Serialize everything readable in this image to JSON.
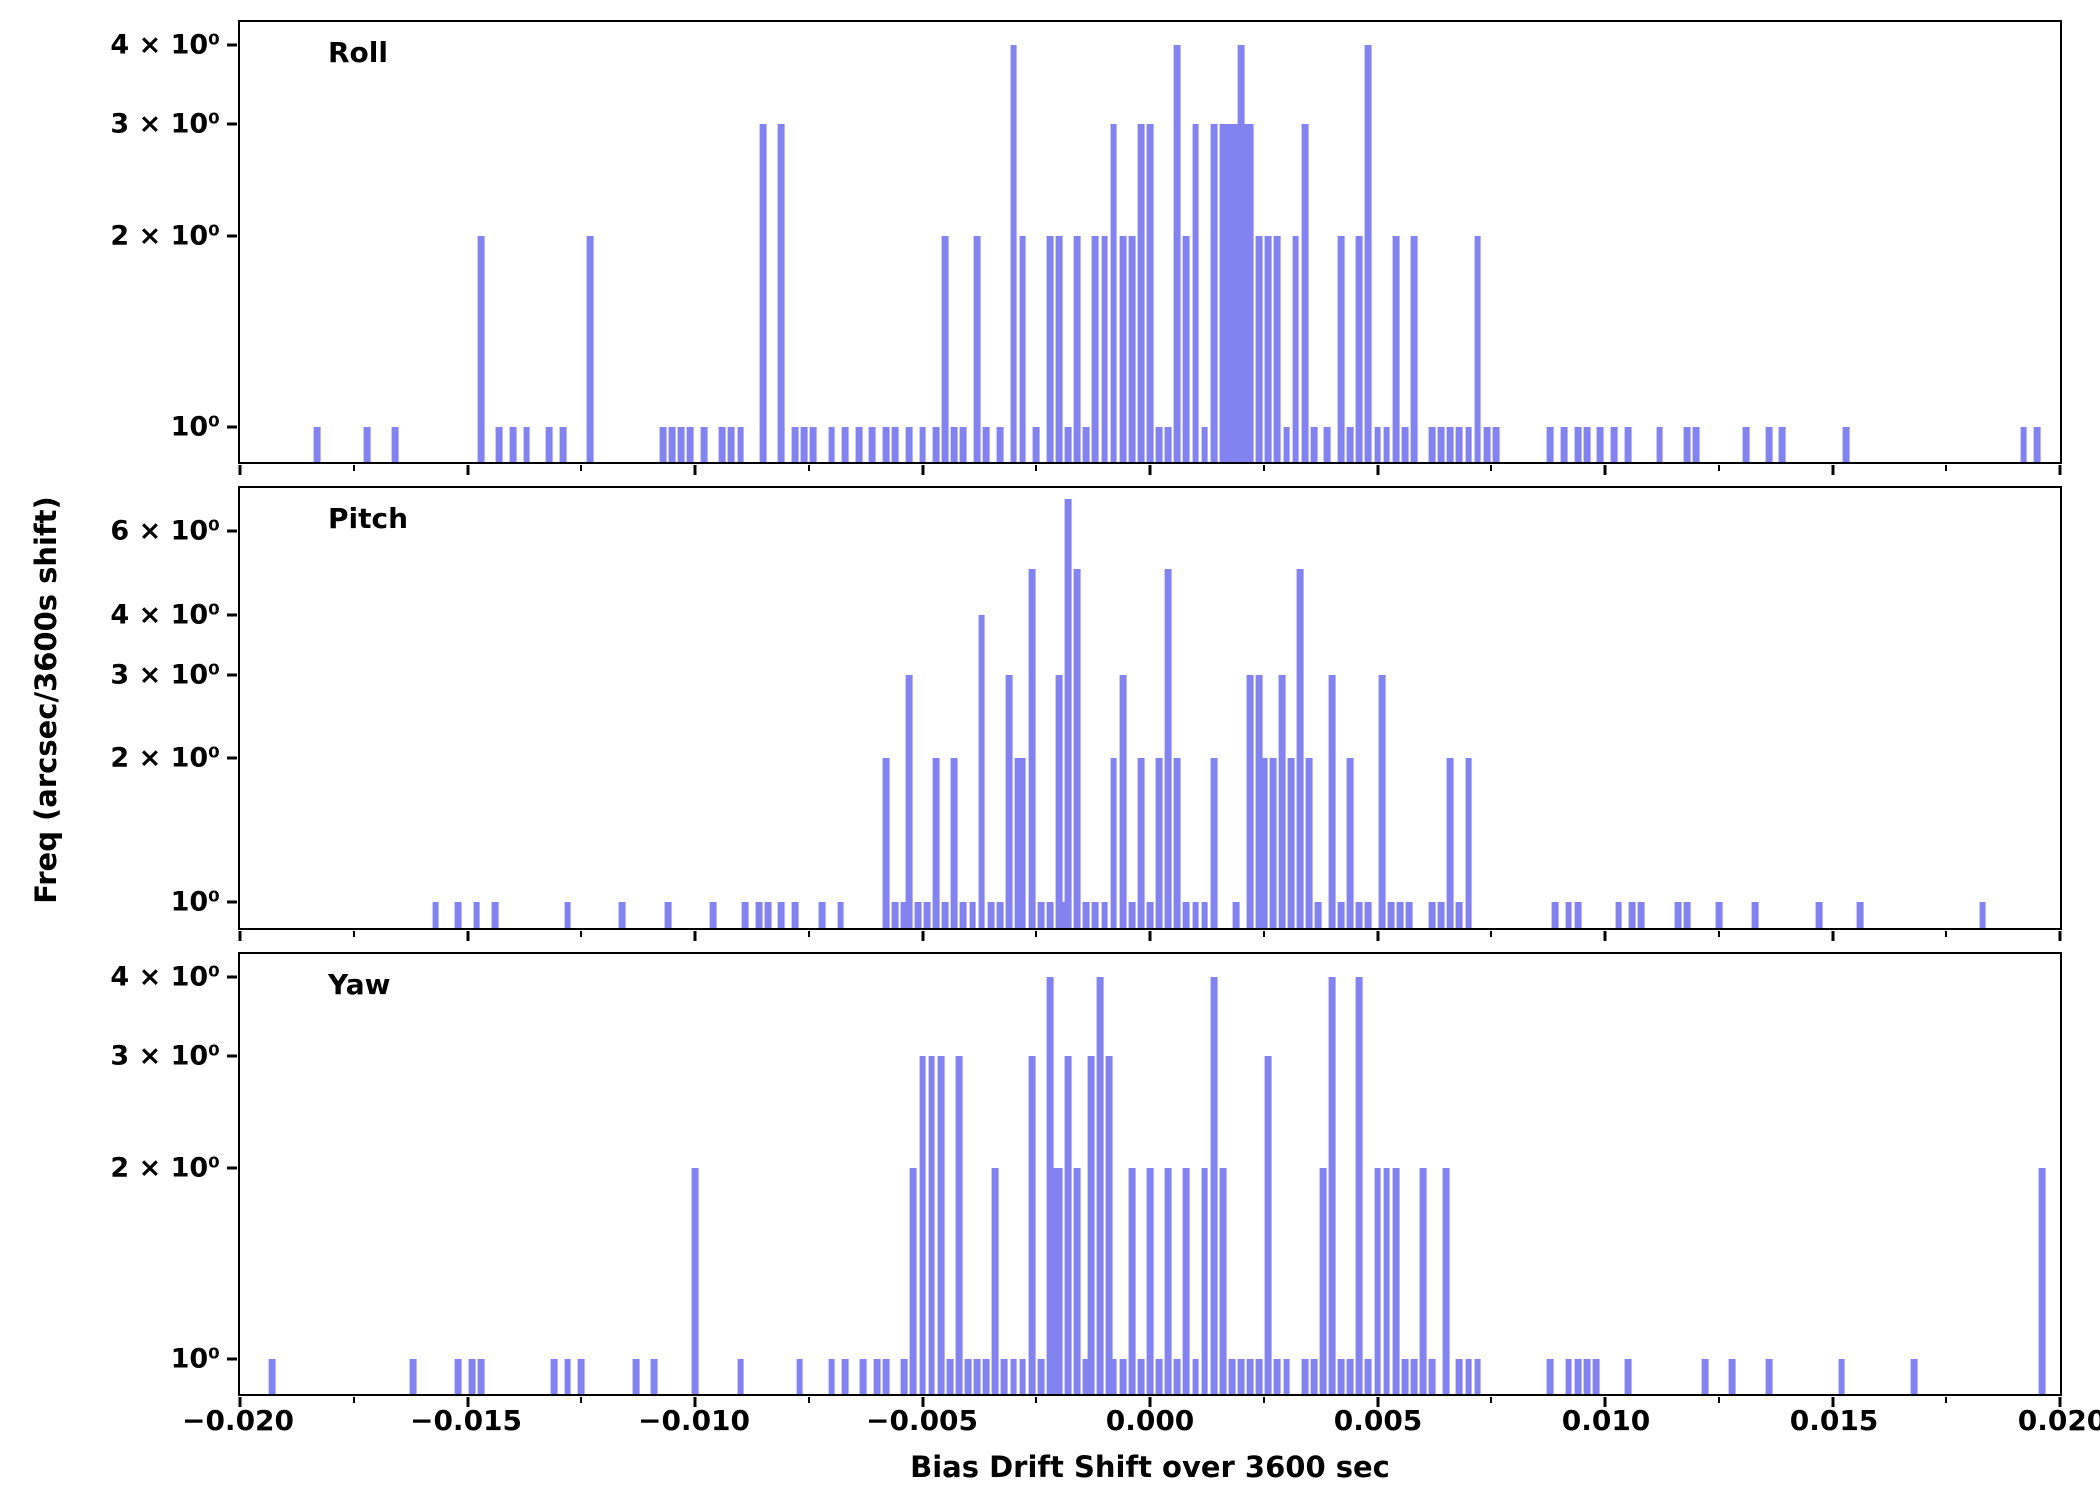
{
  "figure": {
    "xlabel": "Bias Drift Shift over 3600 sec",
    "ylabel": "Freq (arcsec/3600s shift)",
    "bar_color": "#8282f0",
    "xlim": [
      -0.02,
      0.02
    ],
    "xticks": [
      {
        "value": -0.02,
        "label": "−0.020"
      },
      {
        "value": -0.015,
        "label": "−0.015"
      },
      {
        "value": -0.01,
        "label": "−0.010"
      },
      {
        "value": -0.005,
        "label": "−0.005"
      },
      {
        "value": 0.0,
        "label": "0.000"
      },
      {
        "value": 0.005,
        "label": "0.005"
      },
      {
        "value": 0.01,
        "label": "0.010"
      },
      {
        "value": 0.015,
        "label": "0.015"
      },
      {
        "value": 0.02,
        "label": "0.020"
      }
    ]
  },
  "chart_data": [
    {
      "type": "bar",
      "title": "Roll",
      "yscale": "log",
      "ylim": [
        0.88,
        4.35
      ],
      "bin_width": 0.0002,
      "yticks": [
        {
          "value": 1,
          "label": "10⁰"
        },
        {
          "value": 2,
          "label": "2 × 10⁰"
        },
        {
          "value": 3,
          "label": "3 × 10⁰"
        },
        {
          "value": 4,
          "label": "4 × 10⁰"
        }
      ],
      "bars": [
        [
          -0.0183,
          1
        ],
        [
          -0.0172,
          1
        ],
        [
          -0.0166,
          1
        ],
        [
          -0.0147,
          2
        ],
        [
          -0.0143,
          1
        ],
        [
          -0.014,
          1
        ],
        [
          -0.0137,
          1
        ],
        [
          -0.0132,
          1
        ],
        [
          -0.0129,
          1
        ],
        [
          -0.0123,
          2
        ],
        [
          -0.0107,
          1
        ],
        [
          -0.0105,
          1
        ],
        [
          -0.0103,
          1
        ],
        [
          -0.0101,
          1
        ],
        [
          -0.0098,
          1
        ],
        [
          -0.0094,
          1
        ],
        [
          -0.0092,
          1
        ],
        [
          -0.009,
          1
        ],
        [
          -0.0085,
          3
        ],
        [
          -0.0081,
          3
        ],
        [
          -0.0078,
          1
        ],
        [
          -0.0076,
          1
        ],
        [
          -0.0074,
          1
        ],
        [
          -0.007,
          1
        ],
        [
          -0.0067,
          1
        ],
        [
          -0.0064,
          1
        ],
        [
          -0.0061,
          1
        ],
        [
          -0.0058,
          1
        ],
        [
          -0.0056,
          1
        ],
        [
          -0.0053,
          1
        ],
        [
          -0.005,
          1
        ],
        [
          -0.0047,
          1
        ],
        [
          -0.0045,
          2
        ],
        [
          -0.0043,
          1
        ],
        [
          -0.0041,
          1
        ],
        [
          -0.0038,
          2
        ],
        [
          -0.0036,
          1
        ],
        [
          -0.0033,
          1
        ],
        [
          -0.003,
          4
        ],
        [
          -0.0028,
          2
        ],
        [
          -0.0025,
          1
        ],
        [
          -0.0022,
          2
        ],
        [
          -0.002,
          2
        ],
        [
          -0.0018,
          1
        ],
        [
          -0.0016,
          2
        ],
        [
          -0.0014,
          1
        ],
        [
          -0.0012,
          2
        ],
        [
          -0.001,
          2
        ],
        [
          -0.0008,
          3
        ],
        [
          -0.0006,
          2
        ],
        [
          -0.0004,
          2
        ],
        [
          -0.0002,
          3
        ],
        [
          0.0,
          3
        ],
        [
          0.0002,
          1
        ],
        [
          0.0004,
          1
        ],
        [
          0.0006,
          4
        ],
        [
          0.0008,
          2
        ],
        [
          0.001,
          3
        ],
        [
          0.0012,
          1
        ],
        [
          0.0014,
          3
        ],
        [
          0.0016,
          3
        ],
        [
          0.0017,
          3
        ],
        [
          0.0018,
          3
        ],
        [
          0.0019,
          3
        ],
        [
          0.002,
          4
        ],
        [
          0.0021,
          3
        ],
        [
          0.0022,
          3
        ],
        [
          0.0024,
          2
        ],
        [
          0.0026,
          2
        ],
        [
          0.0028,
          2
        ],
        [
          0.003,
          1
        ],
        [
          0.0032,
          2
        ],
        [
          0.0034,
          3
        ],
        [
          0.0036,
          1
        ],
        [
          0.0039,
          1
        ],
        [
          0.0042,
          2
        ],
        [
          0.0044,
          1
        ],
        [
          0.0046,
          2
        ],
        [
          0.0048,
          4
        ],
        [
          0.005,
          1
        ],
        [
          0.0052,
          1
        ],
        [
          0.0054,
          2
        ],
        [
          0.0056,
          1
        ],
        [
          0.0058,
          2
        ],
        [
          0.0062,
          1
        ],
        [
          0.0064,
          1
        ],
        [
          0.0066,
          1
        ],
        [
          0.0068,
          1
        ],
        [
          0.007,
          1
        ],
        [
          0.0072,
          2
        ],
        [
          0.0074,
          1
        ],
        [
          0.0076,
          1
        ],
        [
          0.0088,
          1
        ],
        [
          0.0091,
          1
        ],
        [
          0.0094,
          1
        ],
        [
          0.0096,
          1
        ],
        [
          0.0099,
          1
        ],
        [
          0.0102,
          1
        ],
        [
          0.0105,
          1
        ],
        [
          0.0112,
          1
        ],
        [
          0.0118,
          1
        ],
        [
          0.012,
          1
        ],
        [
          0.0131,
          1
        ],
        [
          0.0136,
          1
        ],
        [
          0.0139,
          1
        ],
        [
          0.0153,
          1
        ],
        [
          0.0192,
          1
        ],
        [
          0.0195,
          1
        ]
      ]
    },
    {
      "type": "bar",
      "title": "Pitch",
      "yscale": "log",
      "ylim": [
        0.88,
        7.4
      ],
      "bin_width": 0.0002,
      "yticks": [
        {
          "value": 1,
          "label": "10⁰"
        },
        {
          "value": 2,
          "label": "2 × 10⁰"
        },
        {
          "value": 3,
          "label": "3 × 10⁰"
        },
        {
          "value": 4,
          "label": "4 × 10⁰"
        },
        {
          "value": 6,
          "label": "6 × 10⁰"
        }
      ],
      "bars": [
        [
          -0.0157,
          1
        ],
        [
          -0.0152,
          1
        ],
        [
          -0.0148,
          1
        ],
        [
          -0.0144,
          1
        ],
        [
          -0.0128,
          1
        ],
        [
          -0.0116,
          1
        ],
        [
          -0.0106,
          1
        ],
        [
          -0.0096,
          1
        ],
        [
          -0.0089,
          1
        ],
        [
          -0.0086,
          1
        ],
        [
          -0.0084,
          1
        ],
        [
          -0.0081,
          1
        ],
        [
          -0.0078,
          1
        ],
        [
          -0.0072,
          1
        ],
        [
          -0.0068,
          1
        ],
        [
          -0.0058,
          2
        ],
        [
          -0.0056,
          1
        ],
        [
          -0.0054,
          1
        ],
        [
          -0.0053,
          3
        ],
        [
          -0.0051,
          1
        ],
        [
          -0.0049,
          1
        ],
        [
          -0.0047,
          2
        ],
        [
          -0.0045,
          1
        ],
        [
          -0.0043,
          2
        ],
        [
          -0.0041,
          1
        ],
        [
          -0.0039,
          1
        ],
        [
          -0.0037,
          4
        ],
        [
          -0.0035,
          1
        ],
        [
          -0.0033,
          1
        ],
        [
          -0.0031,
          3
        ],
        [
          -0.0029,
          2
        ],
        [
          -0.0028,
          2
        ],
        [
          -0.0026,
          5
        ],
        [
          -0.0024,
          1
        ],
        [
          -0.0022,
          1
        ],
        [
          -0.002,
          3
        ],
        [
          -0.0019,
          1
        ],
        [
          -0.0018,
          7
        ],
        [
          -0.0016,
          5
        ],
        [
          -0.0014,
          1
        ],
        [
          -0.0012,
          1
        ],
        [
          -0.001,
          1
        ],
        [
          -0.0008,
          2
        ],
        [
          -0.0006,
          3
        ],
        [
          -0.0004,
          1
        ],
        [
          -0.0002,
          2
        ],
        [
          0.0,
          1
        ],
        [
          0.0002,
          2
        ],
        [
          0.0004,
          5
        ],
        [
          0.0006,
          2
        ],
        [
          0.0008,
          1
        ],
        [
          0.001,
          1
        ],
        [
          0.0012,
          1
        ],
        [
          0.0014,
          2
        ],
        [
          0.0019,
          1
        ],
        [
          0.0022,
          3
        ],
        [
          0.0024,
          3
        ],
        [
          0.0025,
          2
        ],
        [
          0.0027,
          2
        ],
        [
          0.0029,
          3
        ],
        [
          0.0031,
          2
        ],
        [
          0.0033,
          5
        ],
        [
          0.0035,
          2
        ],
        [
          0.0037,
          1
        ],
        [
          0.004,
          3
        ],
        [
          0.0042,
          1
        ],
        [
          0.0044,
          2
        ],
        [
          0.0046,
          1
        ],
        [
          0.0048,
          1
        ],
        [
          0.0051,
          3
        ],
        [
          0.0053,
          1
        ],
        [
          0.0055,
          1
        ],
        [
          0.0057,
          1
        ],
        [
          0.0062,
          1
        ],
        [
          0.0064,
          1
        ],
        [
          0.0066,
          2
        ],
        [
          0.0068,
          1
        ],
        [
          0.007,
          2
        ],
        [
          0.0089,
          1
        ],
        [
          0.0092,
          1
        ],
        [
          0.0094,
          1
        ],
        [
          0.0103,
          1
        ],
        [
          0.0106,
          1
        ],
        [
          0.0108,
          1
        ],
        [
          0.0116,
          1
        ],
        [
          0.0118,
          1
        ],
        [
          0.0125,
          1
        ],
        [
          0.0133,
          1
        ],
        [
          0.0147,
          1
        ],
        [
          0.0156,
          1
        ],
        [
          0.0183,
          1
        ]
      ]
    },
    {
      "type": "bar",
      "title": "Yaw",
      "yscale": "log",
      "ylim": [
        0.88,
        4.35
      ],
      "bin_width": 0.0002,
      "yticks": [
        {
          "value": 1,
          "label": "10⁰"
        },
        {
          "value": 2,
          "label": "2 × 10⁰"
        },
        {
          "value": 3,
          "label": "3 × 10⁰"
        },
        {
          "value": 4,
          "label": "4 × 10⁰"
        }
      ],
      "bars": [
        [
          -0.0193,
          1
        ],
        [
          -0.0162,
          1
        ],
        [
          -0.0152,
          1
        ],
        [
          -0.0149,
          1
        ],
        [
          -0.0147,
          1
        ],
        [
          -0.0131,
          1
        ],
        [
          -0.0128,
          1
        ],
        [
          -0.0125,
          1
        ],
        [
          -0.0113,
          1
        ],
        [
          -0.0109,
          1
        ],
        [
          -0.01,
          2
        ],
        [
          -0.009,
          1
        ],
        [
          -0.0077,
          1
        ],
        [
          -0.007,
          1
        ],
        [
          -0.0067,
          1
        ],
        [
          -0.0063,
          1
        ],
        [
          -0.006,
          1
        ],
        [
          -0.0058,
          1
        ],
        [
          -0.0054,
          1
        ],
        [
          -0.0052,
          2
        ],
        [
          -0.005,
          3
        ],
        [
          -0.0048,
          3
        ],
        [
          -0.0046,
          3
        ],
        [
          -0.0044,
          1
        ],
        [
          -0.0042,
          3
        ],
        [
          -0.004,
          1
        ],
        [
          -0.0038,
          1
        ],
        [
          -0.0036,
          1
        ],
        [
          -0.0034,
          2
        ],
        [
          -0.0032,
          1
        ],
        [
          -0.003,
          1
        ],
        [
          -0.0028,
          1
        ],
        [
          -0.0026,
          3
        ],
        [
          -0.0024,
          1
        ],
        [
          -0.0022,
          4
        ],
        [
          -0.0021,
          2
        ],
        [
          -0.002,
          2
        ],
        [
          -0.0018,
          3
        ],
        [
          -0.0016,
          2
        ],
        [
          -0.0014,
          1
        ],
        [
          -0.0013,
          3
        ],
        [
          -0.0011,
          4
        ],
        [
          -0.0009,
          3
        ],
        [
          -0.0008,
          1
        ],
        [
          -0.0006,
          1
        ],
        [
          -0.0004,
          2
        ],
        [
          -0.0002,
          1
        ],
        [
          0.0,
          2
        ],
        [
          0.0002,
          1
        ],
        [
          0.0004,
          2
        ],
        [
          0.0006,
          1
        ],
        [
          0.0008,
          2
        ],
        [
          0.001,
          1
        ],
        [
          0.0012,
          2
        ],
        [
          0.0014,
          4
        ],
        [
          0.0016,
          2
        ],
        [
          0.0018,
          1
        ],
        [
          0.002,
          1
        ],
        [
          0.0022,
          1
        ],
        [
          0.0024,
          1
        ],
        [
          0.0026,
          3
        ],
        [
          0.0028,
          1
        ],
        [
          0.003,
          1
        ],
        [
          0.0034,
          1
        ],
        [
          0.0036,
          1
        ],
        [
          0.0038,
          2
        ],
        [
          0.004,
          4
        ],
        [
          0.0042,
          1
        ],
        [
          0.0044,
          1
        ],
        [
          0.0046,
          4
        ],
        [
          0.0048,
          1
        ],
        [
          0.005,
          2
        ],
        [
          0.0052,
          2
        ],
        [
          0.0054,
          2
        ],
        [
          0.0056,
          1
        ],
        [
          0.0058,
          1
        ],
        [
          0.006,
          2
        ],
        [
          0.0062,
          1
        ],
        [
          0.0065,
          2
        ],
        [
          0.0068,
          1
        ],
        [
          0.007,
          1
        ],
        [
          0.0072,
          1
        ],
        [
          0.0088,
          1
        ],
        [
          0.0092,
          1
        ],
        [
          0.0094,
          1
        ],
        [
          0.0096,
          1
        ],
        [
          0.0098,
          1
        ],
        [
          0.0105,
          1
        ],
        [
          0.0122,
          1
        ],
        [
          0.0128,
          1
        ],
        [
          0.0136,
          1
        ],
        [
          0.0152,
          1
        ],
        [
          0.0168,
          1
        ],
        [
          0.0196,
          2
        ]
      ]
    }
  ]
}
